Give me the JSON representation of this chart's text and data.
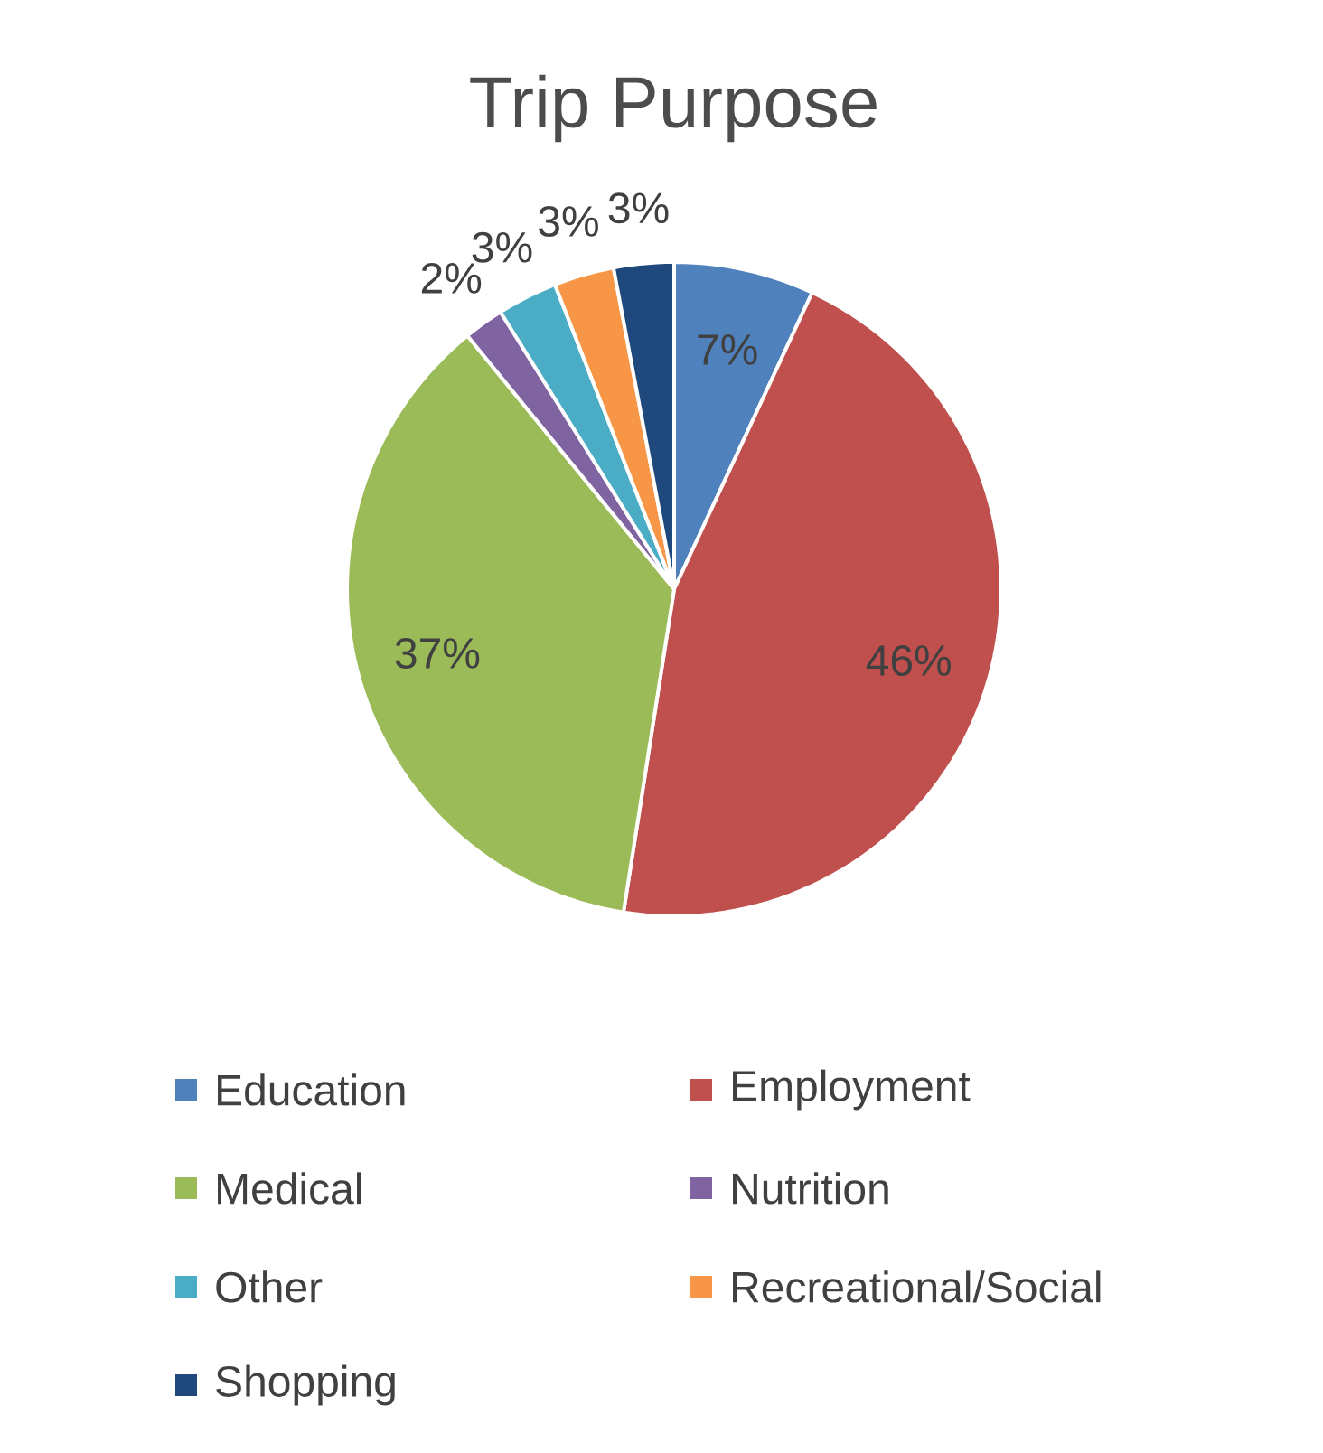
{
  "chart_data": {
    "type": "pie",
    "title": "Trip Purpose",
    "categories": [
      "Education",
      "Employment",
      "Medical",
      "Nutrition",
      "Other",
      "Recreational/Social",
      "Shopping"
    ],
    "values": [
      7,
      46,
      37,
      2,
      3,
      3,
      3
    ],
    "colors": [
      "#4f81bd",
      "#c0504d",
      "#9bbb59",
      "#8064a2",
      "#4bacc6",
      "#f79646",
      "#1f497d"
    ],
    "value_labels": [
      "7%",
      "46%",
      "37%",
      "2%",
      "3%",
      "3%",
      "3%"
    ],
    "legend": "bottom"
  }
}
